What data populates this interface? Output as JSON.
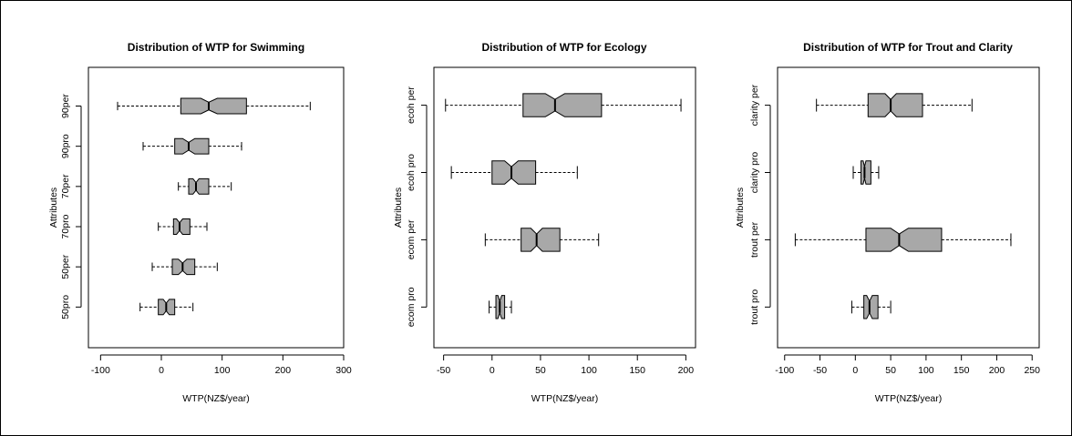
{
  "chart_data": [
    {
      "type": "boxplot",
      "orientation": "horizontal",
      "notched": true,
      "title": "Distribution of WTP for Swimming",
      "xlabel": "WTP(NZ$/year)",
      "ylabel": "Attributes",
      "xlim": [
        -120,
        300
      ],
      "xticks": [
        -100,
        0,
        100,
        200,
        300
      ],
      "xtick_labels": [
        "-100",
        "0",
        "100",
        "200",
        "300"
      ],
      "categories": [
        "50pro",
        "50per",
        "70pro",
        "70per",
        "90pro",
        "90per"
      ],
      "boxes": [
        {
          "label": "50pro",
          "whisker_low": -35,
          "q1": -5,
          "median": 8,
          "q3": 22,
          "whisker_high": 52,
          "notch_low": 3,
          "notch_high": 13
        },
        {
          "label": "50per",
          "whisker_low": -15,
          "q1": 18,
          "median": 35,
          "q3": 55,
          "whisker_high": 92,
          "notch_low": 28,
          "notch_high": 42
        },
        {
          "label": "70pro",
          "whisker_low": -5,
          "q1": 20,
          "median": 30,
          "q3": 47,
          "whisker_high": 75,
          "notch_low": 25,
          "notch_high": 35
        },
        {
          "label": "70per",
          "whisker_low": 28,
          "q1": 45,
          "median": 57,
          "q3": 78,
          "whisker_high": 115,
          "notch_low": 52,
          "notch_high": 62
        },
        {
          "label": "90pro",
          "whisker_low": -30,
          "q1": 22,
          "median": 45,
          "q3": 78,
          "whisker_high": 132,
          "notch_low": 35,
          "notch_high": 55
        },
        {
          "label": "90per",
          "whisker_low": -72,
          "q1": 32,
          "median": 78,
          "q3": 140,
          "whisker_high": 245,
          "notch_low": 65,
          "notch_high": 92
        }
      ]
    },
    {
      "type": "boxplot",
      "orientation": "horizontal",
      "notched": true,
      "title": "Distribution of WTP for Ecology",
      "xlabel": "WTP(NZ$/year)",
      "ylabel": "Attributes",
      "xlim": [
        -60,
        210
      ],
      "xticks": [
        -50,
        0,
        50,
        100,
        150,
        200
      ],
      "xtick_labels": [
        "-50",
        "0",
        "50",
        "100",
        "150",
        "200"
      ],
      "categories": [
        "ecom pro",
        "ecom per",
        "ecoh pro",
        "ecoh per"
      ],
      "boxes": [
        {
          "label": "ecom pro",
          "whisker_low": -3,
          "q1": 4,
          "median": 8,
          "q3": 13,
          "whisker_high": 20,
          "notch_low": 6,
          "notch_high": 10
        },
        {
          "label": "ecom per",
          "whisker_low": -7,
          "q1": 30,
          "median": 46,
          "q3": 70,
          "whisker_high": 110,
          "notch_low": 40,
          "notch_high": 52
        },
        {
          "label": "ecoh pro",
          "whisker_low": -42,
          "q1": 0,
          "median": 20,
          "q3": 45,
          "whisker_high": 88,
          "notch_low": 13,
          "notch_high": 27
        },
        {
          "label": "ecoh per",
          "whisker_low": -48,
          "q1": 32,
          "median": 65,
          "q3": 113,
          "whisker_high": 195,
          "notch_low": 55,
          "notch_high": 75
        }
      ]
    },
    {
      "type": "boxplot",
      "orientation": "horizontal",
      "notched": true,
      "title": "Distribution of WTP for Trout and Clarity",
      "xlabel": "WTP(NZ$/year)",
      "ylabel": "Attributes",
      "xlim": [
        -110,
        260
      ],
      "xticks": [
        -100,
        -50,
        0,
        50,
        100,
        150,
        200,
        250
      ],
      "xtick_labels": [
        "-100",
        "-50",
        "0",
        "50",
        "100",
        "150",
        "200",
        "250"
      ],
      "categories": [
        "trout pro",
        "trout per",
        "clarity pro",
        "clarity per"
      ],
      "boxes": [
        {
          "label": "trout pro",
          "whisker_low": -5,
          "q1": 12,
          "median": 20,
          "q3": 32,
          "whisker_high": 50,
          "notch_low": 16,
          "notch_high": 24
        },
        {
          "label": "trout per",
          "whisker_low": -85,
          "q1": 15,
          "median": 62,
          "q3": 122,
          "whisker_high": 220,
          "notch_low": 50,
          "notch_high": 75
        },
        {
          "label": "clarity pro",
          "whisker_low": -3,
          "q1": 8,
          "median": 13,
          "q3": 22,
          "whisker_high": 33,
          "notch_low": 11,
          "notch_high": 15
        },
        {
          "label": "clarity per",
          "whisker_low": -55,
          "q1": 18,
          "median": 50,
          "q3": 95,
          "whisker_high": 165,
          "notch_low": 42,
          "notch_high": 58
        }
      ]
    }
  ],
  "colors": {
    "box_fill": "#a8a8a8",
    "stroke": "#000000",
    "background": "#ffffff"
  }
}
